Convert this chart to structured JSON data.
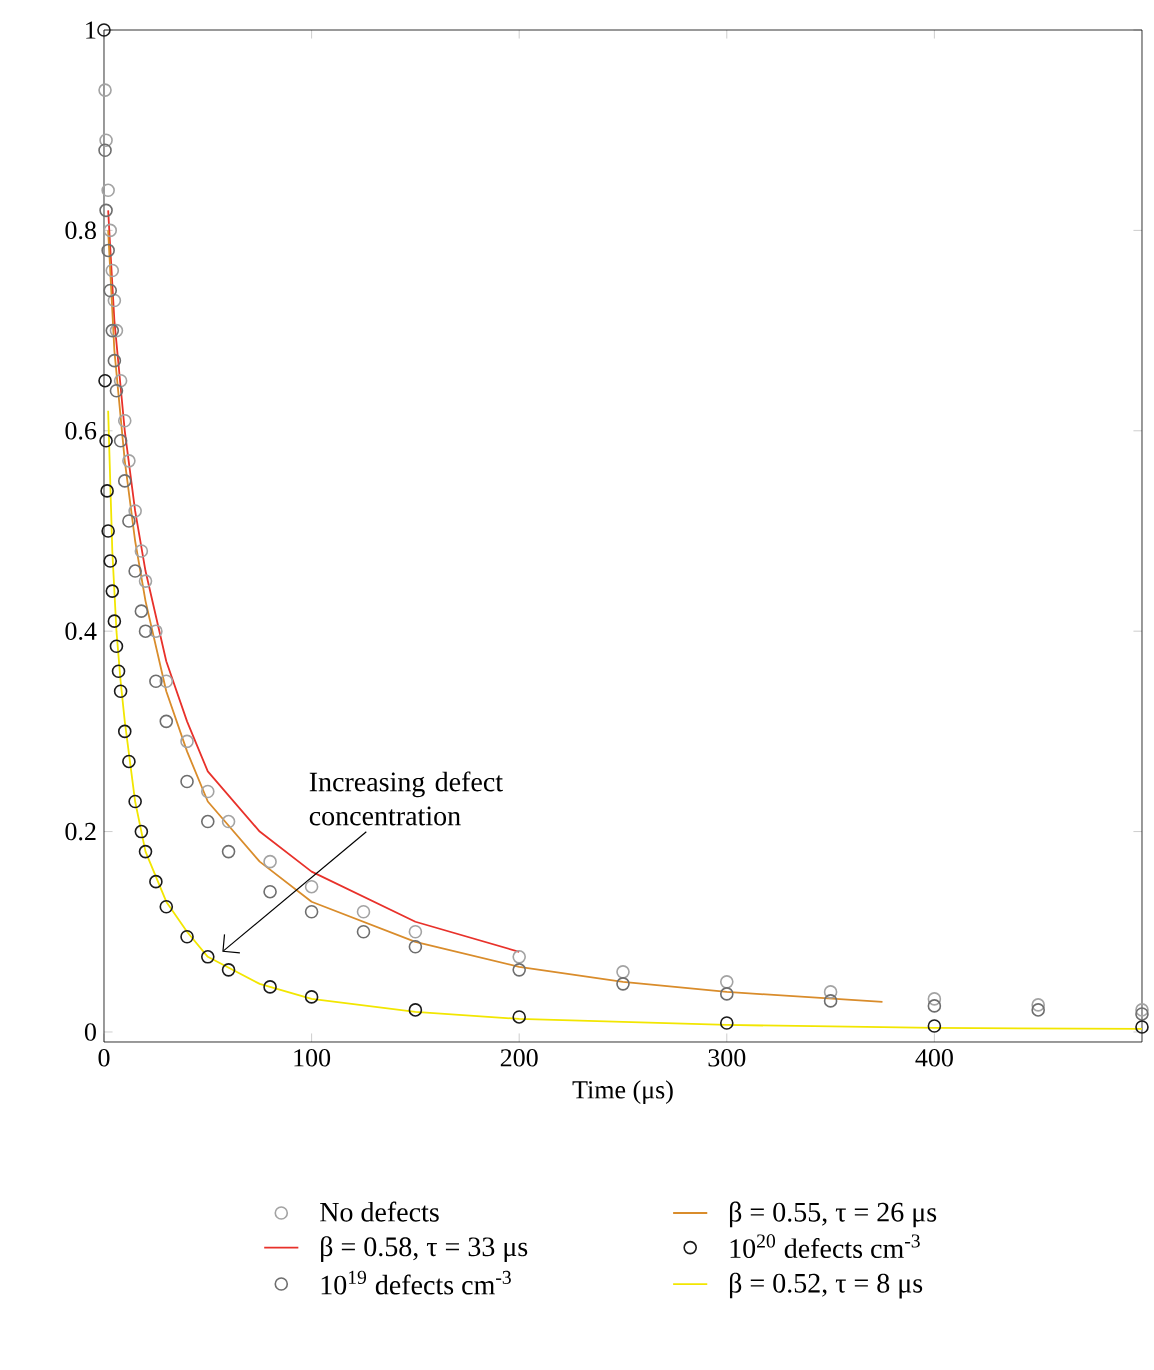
{
  "chart_data": {
    "type": "scatter",
    "xlabel": "Time (μs)",
    "xlim": [
      0,
      500
    ],
    "ylim": [
      -0.01,
      1
    ],
    "xticks": [
      0,
      100,
      200,
      300,
      400
    ],
    "yticks": [
      0,
      0.2,
      0.4,
      0.6,
      0.8,
      1
    ],
    "legend": "bottom",
    "annotations": [
      {
        "text": "Increasing defect concentration",
        "x": 57,
        "y": 0.08
      }
    ],
    "series": [
      {
        "name": "No defects",
        "marker": "circle",
        "color": "#a3a3a3",
        "x": [
          0.5,
          1,
          2,
          3,
          4,
          5,
          6,
          8,
          10,
          12,
          15,
          18,
          20,
          25,
          30,
          40,
          50,
          60,
          80,
          100,
          125,
          150,
          200,
          250,
          300,
          350,
          400,
          450,
          500
        ],
        "values": [
          0.94,
          0.89,
          0.84,
          0.8,
          0.76,
          0.73,
          0.7,
          0.65,
          0.61,
          0.57,
          0.52,
          0.48,
          0.45,
          0.4,
          0.35,
          0.29,
          0.24,
          0.21,
          0.17,
          0.145,
          0.12,
          0.1,
          0.075,
          0.06,
          0.05,
          0.04,
          0.033,
          0.027,
          0.022
        ]
      },
      {
        "name": "β = 0.58, τ = 33 μs",
        "type": "line",
        "color": "#e8312a",
        "x": [
          2,
          5,
          10,
          15,
          20,
          30,
          40,
          50,
          75,
          100,
          150,
          200
        ],
        "values": [
          0.82,
          0.71,
          0.6,
          0.52,
          0.46,
          0.37,
          0.31,
          0.26,
          0.2,
          0.16,
          0.11,
          0.08
        ]
      },
      {
        "name": "10$^{19}$ defects cm$^{-3}$",
        "marker": "circle",
        "color": "#6e6e6e",
        "x": [
          0.5,
          1,
          2,
          3,
          4,
          5,
          6,
          8,
          10,
          12,
          15,
          18,
          20,
          25,
          30,
          40,
          50,
          60,
          80,
          100,
          125,
          150,
          200,
          250,
          300,
          350,
          400,
          450,
          500
        ],
        "values": [
          0.88,
          0.82,
          0.78,
          0.74,
          0.7,
          0.67,
          0.64,
          0.59,
          0.55,
          0.51,
          0.46,
          0.42,
          0.4,
          0.35,
          0.31,
          0.25,
          0.21,
          0.18,
          0.14,
          0.12,
          0.1,
          0.085,
          0.062,
          0.048,
          0.038,
          0.031,
          0.026,
          0.022,
          0.018
        ]
      },
      {
        "name": "β = 0.55, τ = 26 μs",
        "type": "line",
        "color": "#d98c2b",
        "x": [
          2,
          5,
          10,
          15,
          20,
          30,
          40,
          50,
          75,
          100,
          150,
          200,
          250,
          300,
          375
        ],
        "values": [
          0.8,
          0.68,
          0.57,
          0.49,
          0.43,
          0.34,
          0.28,
          0.23,
          0.17,
          0.13,
          0.09,
          0.065,
          0.05,
          0.04,
          0.03
        ]
      },
      {
        "name": "10$^{20}$ defects cm$^{-3}$",
        "marker": "circle",
        "color": "#1a1a1a",
        "x": [
          0,
          0.5,
          1,
          1.5,
          2,
          3,
          4,
          5,
          6,
          7,
          8,
          10,
          12,
          15,
          18,
          20,
          25,
          30,
          40,
          50,
          60,
          80,
          100,
          150,
          200,
          300,
          400,
          500
        ],
        "values": [
          1,
          0.65,
          0.59,
          0.54,
          0.5,
          0.47,
          0.44,
          0.41,
          0.385,
          0.36,
          0.34,
          0.3,
          0.27,
          0.23,
          0.2,
          0.18,
          0.15,
          0.125,
          0.095,
          0.075,
          0.062,
          0.045,
          0.035,
          0.022,
          0.015,
          0.009,
          0.006,
          0.005
        ]
      },
      {
        "name": "β = 0.52, τ = 8 μs",
        "type": "line",
        "color": "#f2e600",
        "x": [
          2,
          4,
          6,
          8,
          10,
          15,
          20,
          30,
          40,
          50,
          75,
          100,
          150,
          200,
          300,
          400,
          500
        ],
        "values": [
          0.62,
          0.48,
          0.4,
          0.35,
          0.31,
          0.23,
          0.18,
          0.13,
          0.1,
          0.075,
          0.048,
          0.033,
          0.02,
          0.013,
          0.007,
          0.004,
          0.003
        ]
      }
    ]
  }
}
